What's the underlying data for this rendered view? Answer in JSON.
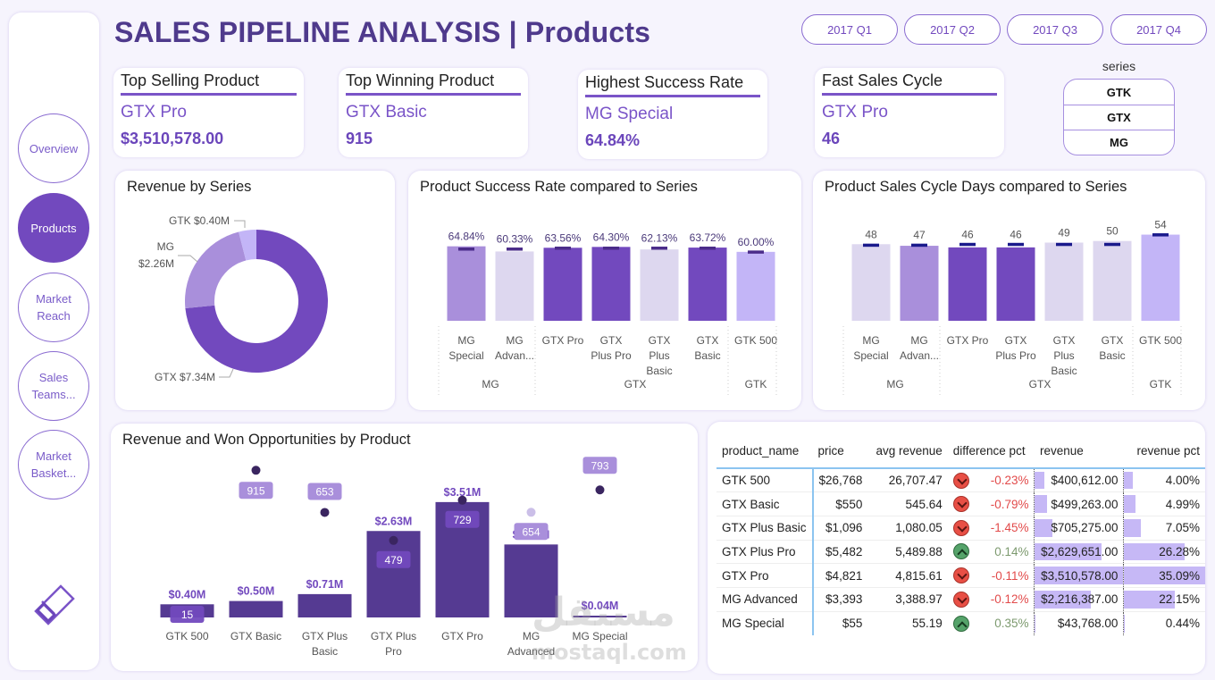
{
  "title": "SALES PIPELINE ANALYSIS | Products",
  "sidebar": {
    "items": [
      {
        "label": "Overview",
        "active": false
      },
      {
        "label": "Products",
        "active": true
      },
      {
        "label": "Market Reach",
        "active": false
      },
      {
        "label": "Sales Teams...",
        "active": false
      },
      {
        "label": "Market Basket...",
        "active": false
      }
    ],
    "clear_icon": "eraser-icon"
  },
  "quarters": [
    "2017 Q1",
    "2017 Q2",
    "2017 Q3",
    "2017 Q4"
  ],
  "kpis": [
    {
      "title": "Top Selling Product",
      "name": "GTX Pro",
      "value": "$3,510,578.00"
    },
    {
      "title": "Top Winning Product",
      "name": "GTX Basic",
      "value": "915"
    },
    {
      "title": "Highest Success Rate",
      "name": "MG Special",
      "value": "64.84%"
    },
    {
      "title": "Fast Sales Cycle",
      "name": "GTX Pro",
      "value": "46"
    }
  ],
  "series_slicer": {
    "label": "series",
    "items": [
      "GTK",
      "GTX",
      "MG"
    ]
  },
  "colors": {
    "dark_purple": "#7249be",
    "mid_purple": "#a98fdb",
    "light_lavender": "#ddd7ef",
    "light_violet": "#c3b5f7",
    "deep_bar": "#553a92",
    "marker": "#3a2560",
    "target_marker": "#1a1a8c",
    "label_purple": "#7249be"
  },
  "chart_data": [
    {
      "id": "revenue_by_series",
      "type": "pie",
      "title": "Revenue by Series",
      "donut": true,
      "slices": [
        {
          "label": "GTX",
          "value": 7.34,
          "display": "GTX $7.34M",
          "color": "#7249be"
        },
        {
          "label": "MG",
          "value": 2.26,
          "display": "MG $2.26M",
          "color": "#a98fdb"
        },
        {
          "label": "GTK",
          "value": 0.4,
          "display": "GTK $0.40M",
          "color": "#c3b5f7"
        }
      ],
      "unit": "$M"
    },
    {
      "id": "success_rate",
      "type": "bar",
      "title": "Product Success Rate compared to Series",
      "categories": [
        "MG Special",
        "MG Advan...",
        "GTX Pro",
        "GTX Plus Pro",
        "GTX Plus Basic",
        "GTX Basic",
        "GTK 500"
      ],
      "groups": [
        {
          "label": "MG",
          "count": 2
        },
        {
          "label": "GTX",
          "count": 4
        },
        {
          "label": "GTK",
          "count": 1
        }
      ],
      "values": [
        64.84,
        60.33,
        63.56,
        64.3,
        62.13,
        63.72,
        60.0
      ],
      "labels": [
        "64.84%",
        "60.33%",
        "63.56%",
        "64.30%",
        "62.13%",
        "63.72%",
        "60.00%"
      ],
      "series_avg": [
        62.6,
        62.6,
        63.4,
        63.4,
        63.4,
        63.4,
        60.0
      ],
      "bar_colors": [
        "#a98fdb",
        "#ddd7ef",
        "#7249be",
        "#7249be",
        "#ddd7ef",
        "#7249be",
        "#c3b5f7"
      ],
      "ylim": [
        0,
        70
      ],
      "xlabel": "",
      "ylabel": ""
    },
    {
      "id": "sales_cycle",
      "type": "bar",
      "title": "Product Sales Cycle Days compared to Series",
      "categories": [
        "MG Special",
        "MG Advan...",
        "GTX Pro",
        "GTX Plus Pro",
        "GTX Plus Basic",
        "GTX Basic",
        "GTK 500"
      ],
      "groups": [
        {
          "label": "MG",
          "count": 2
        },
        {
          "label": "GTX",
          "count": 4
        },
        {
          "label": "GTK",
          "count": 1
        }
      ],
      "values": [
        48,
        47,
        46,
        46,
        49,
        50,
        54
      ],
      "labels": [
        "48",
        "47",
        "46",
        "46",
        "49",
        "50",
        "54"
      ],
      "series_avg": [
        47.5,
        47.5,
        48,
        48,
        48,
        48,
        54
      ],
      "bar_colors": [
        "#ddd7ef",
        "#a98fdb",
        "#7249be",
        "#7249be",
        "#ddd7ef",
        "#ddd7ef",
        "#c3b5f7"
      ],
      "ylim": [
        0,
        56
      ],
      "xlabel": "",
      "ylabel": ""
    },
    {
      "id": "revenue_won",
      "type": "bar",
      "title": "Revenue and Won Opportunities by Product",
      "categories": [
        "GTK 500",
        "GTX Basic",
        "GTX Plus Basic",
        "GTX Plus Pro",
        "GTX Pro",
        "MG Advanced",
        "MG Special"
      ],
      "series": [
        {
          "name": "Revenue",
          "type": "bar",
          "values": [
            0.4,
            0.5,
            0.71,
            2.63,
            3.51,
            2.22,
            0.04
          ],
          "labels": [
            "$0.40M",
            "$0.50M",
            "$0.71M",
            "$2.63M",
            "$3.51M",
            "$2.22M",
            "$0.04M"
          ]
        },
        {
          "name": "Won Opportunities",
          "type": "scatter",
          "values": [
            15,
            915,
            653,
            479,
            729,
            654,
            793
          ],
          "labels": [
            "15",
            "915",
            "653",
            "479",
            "729",
            "654",
            "793"
          ]
        }
      ],
      "revenue_ylim": [
        0,
        4.2
      ],
      "won_ylim": [
        0,
        1050
      ]
    }
  ],
  "table": {
    "columns": [
      "product_name",
      "price",
      "avg revenue",
      "difference pct",
      "revenue",
      "revenue pct"
    ],
    "rows": [
      {
        "product_name": "GTK 500",
        "price": "$26,768",
        "avg_revenue": "26,707.47",
        "trend": "down",
        "difference_pct": "-0.23%",
        "revenue": "$400,612.00",
        "revenue_value": 400612,
        "revenue_pct": "4.00%",
        "revenue_pct_value": 4.0
      },
      {
        "product_name": "GTX Basic",
        "price": "$550",
        "avg_revenue": "545.64",
        "trend": "down",
        "difference_pct": "-0.79%",
        "revenue": "$499,263.00",
        "revenue_value": 499263,
        "revenue_pct": "4.99%",
        "revenue_pct_value": 4.99
      },
      {
        "product_name": "GTX Plus Basic",
        "price": "$1,096",
        "avg_revenue": "1,080.05",
        "trend": "down",
        "difference_pct": "-1.45%",
        "revenue": "$705,275.00",
        "revenue_value": 705275,
        "revenue_pct": "7.05%",
        "revenue_pct_value": 7.05
      },
      {
        "product_name": "GTX Plus Pro",
        "price": "$5,482",
        "avg_revenue": "5,489.88",
        "trend": "up",
        "difference_pct": "0.14%",
        "revenue": "$2,629,651.00",
        "revenue_value": 2629651,
        "revenue_pct": "26.28%",
        "revenue_pct_value": 26.28
      },
      {
        "product_name": "GTX Pro",
        "price": "$4,821",
        "avg_revenue": "4,815.61",
        "trend": "down",
        "difference_pct": "-0.11%",
        "revenue": "$3,510,578.00",
        "revenue_value": 3510578,
        "revenue_pct": "35.09%",
        "revenue_pct_value": 35.09
      },
      {
        "product_name": "MG Advanced",
        "price": "$3,393",
        "avg_revenue": "3,388.97",
        "trend": "down",
        "difference_pct": "-0.12%",
        "revenue": "$2,216,387.00",
        "revenue_value": 2216387,
        "revenue_pct": "22.15%",
        "revenue_pct_value": 22.15
      },
      {
        "product_name": "MG Special",
        "price": "$55",
        "avg_revenue": "55.19",
        "trend": "up",
        "difference_pct": "0.35%",
        "revenue": "$43,768.00",
        "revenue_value": 43768,
        "revenue_pct": "0.44%",
        "revenue_pct_value": 0.44
      }
    ]
  },
  "watermark": {
    "arabic": "مستقل",
    "latin": "mostaql.com"
  }
}
